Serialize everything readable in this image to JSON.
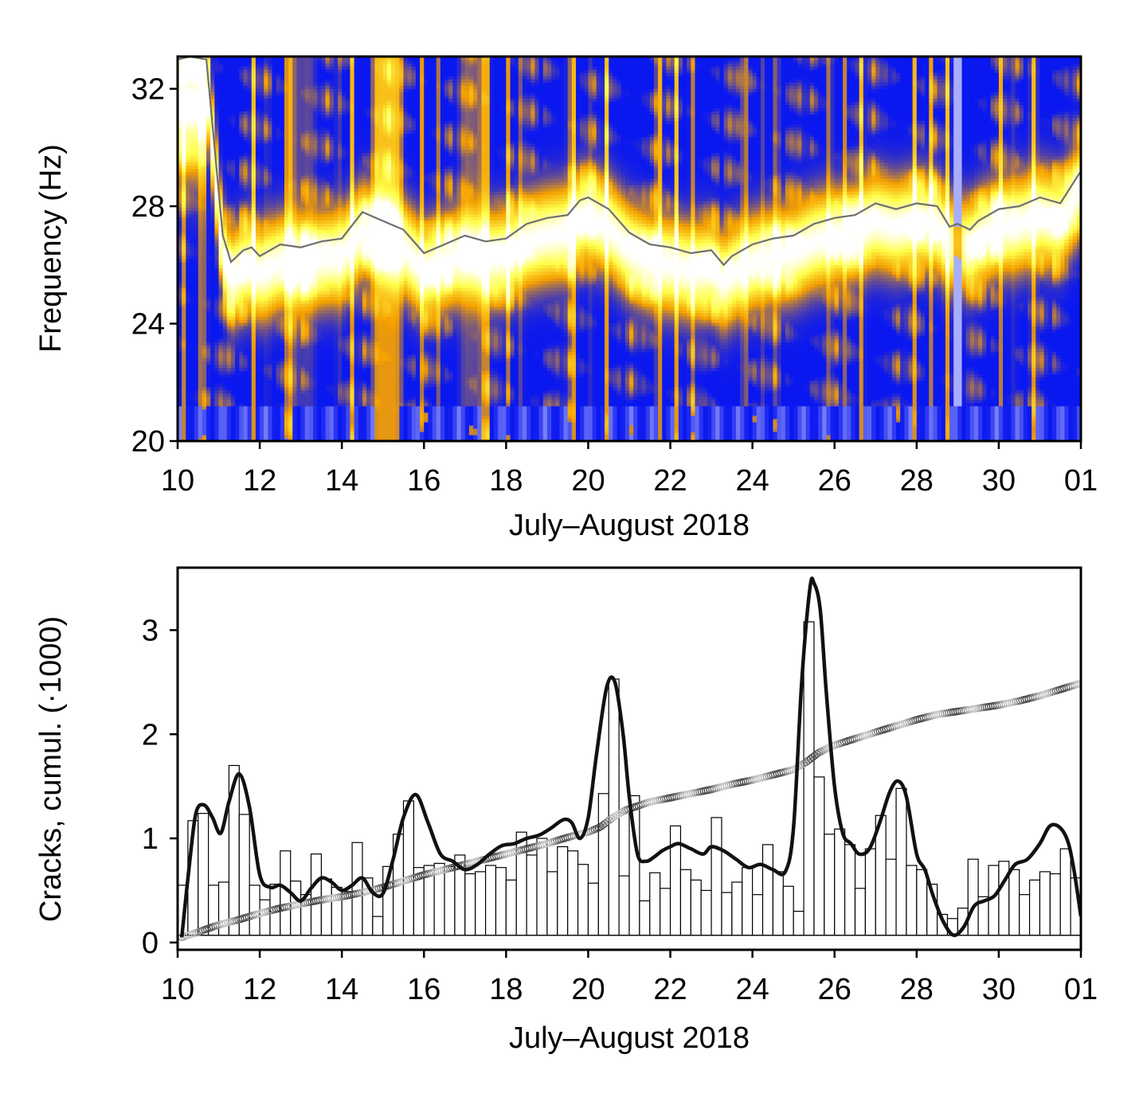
{
  "chart_data": [
    {
      "type": "heatmap",
      "xlabel": "July–August 2018",
      "ylabel": "Frequency (Hz)",
      "x_tick_labels": [
        "10",
        "12",
        "14",
        "16",
        "18",
        "20",
        "22",
        "24",
        "26",
        "28",
        "30",
        "01"
      ],
      "x_tick_days": [
        10,
        12,
        14,
        16,
        18,
        20,
        22,
        24,
        26,
        28,
        30,
        32
      ],
      "xlim": [
        10,
        32
      ],
      "ylim": [
        20,
        33.1
      ],
      "y_ticks": [
        20,
        24,
        28,
        32
      ],
      "colormap": [
        "#ffffff",
        "#0a18f0",
        "#f5a000",
        "#ffff4a",
        "#ffffff"
      ],
      "features": {
        "band_halfwidth_hz": 1.4,
        "gap_at_day": 29.0,
        "upper_band_until_day": 10.7
      },
      "line": {
        "name": "",
        "color": "#6f6f6f",
        "x": [
          10,
          10.3,
          10.7,
          10.9,
          11.1,
          11.3,
          11.6,
          11.8,
          12.0,
          12.5,
          13.0,
          13.5,
          14.0,
          14.5,
          15.0,
          15.5,
          16.0,
          16.5,
          17.0,
          17.5,
          18.0,
          18.5,
          19.0,
          19.5,
          19.8,
          20.0,
          20.5,
          21.0,
          21.5,
          22.0,
          22.5,
          23.0,
          23.3,
          23.5,
          24.0,
          24.5,
          25.0,
          25.5,
          26.0,
          26.5,
          27.0,
          27.5,
          28.0,
          28.5,
          28.8,
          29.0,
          29.3,
          29.5,
          30.0,
          30.5,
          31.0,
          31.5,
          32.0
        ],
        "y": [
          33.0,
          33.1,
          33.0,
          30.0,
          27.0,
          26.1,
          26.5,
          26.6,
          26.3,
          26.7,
          26.6,
          26.8,
          26.9,
          27.8,
          27.5,
          27.2,
          26.4,
          26.7,
          27.0,
          26.8,
          26.9,
          27.4,
          27.6,
          27.7,
          28.2,
          28.3,
          27.9,
          27.1,
          26.7,
          26.6,
          26.4,
          26.5,
          26.0,
          26.3,
          26.7,
          26.9,
          27.0,
          27.4,
          27.6,
          27.7,
          28.1,
          27.9,
          28.1,
          28.0,
          27.3,
          27.4,
          27.2,
          27.5,
          27.9,
          28.0,
          28.3,
          28.1,
          29.2
        ]
      }
    },
    {
      "type": "bar",
      "xlabel": "July–August 2018",
      "ylabel": "Cracks, cumul. (·1000)",
      "x_tick_labels": [
        "10",
        "12",
        "14",
        "16",
        "18",
        "20",
        "22",
        "24",
        "26",
        "28",
        "30",
        "01"
      ],
      "x_tick_days": [
        10,
        12,
        14,
        16,
        18,
        20,
        22,
        24,
        26,
        28,
        30,
        32
      ],
      "xlim": [
        10,
        32
      ],
      "ylim": [
        -0.07,
        3.6
      ],
      "y_ticks": [
        0,
        1,
        2,
        3
      ],
      "baseline": 0.07,
      "bar_width_days": 0.25,
      "bars_x": [
        10.125,
        10.375,
        10.625,
        10.875,
        11.125,
        11.375,
        11.625,
        11.875,
        12.125,
        12.375,
        12.625,
        12.875,
        13.125,
        13.375,
        13.625,
        13.875,
        14.125,
        14.375,
        14.625,
        14.875,
        15.125,
        15.375,
        15.625,
        15.875,
        16.125,
        16.375,
        16.625,
        16.875,
        17.125,
        17.375,
        17.625,
        17.875,
        18.125,
        18.375,
        18.625,
        18.875,
        19.125,
        19.375,
        19.625,
        19.875,
        20.125,
        20.375,
        20.625,
        20.875,
        21.125,
        21.375,
        21.625,
        21.875,
        22.125,
        22.375,
        22.625,
        22.875,
        23.125,
        23.375,
        23.625,
        23.875,
        24.125,
        24.375,
        24.625,
        24.875,
        25.125,
        25.375,
        25.625,
        25.875,
        26.125,
        26.375,
        26.625,
        26.875,
        27.125,
        27.375,
        27.625,
        27.875,
        28.125,
        28.375,
        28.625,
        28.875,
        29.125,
        29.375,
        29.625,
        29.875,
        30.125,
        30.375,
        30.625,
        30.875,
        31.125,
        31.375,
        31.625,
        31.875
      ],
      "bars_values": [
        0.55,
        1.17,
        1.24,
        0.55,
        0.58,
        1.7,
        1.23,
        0.55,
        0.41,
        0.56,
        0.88,
        0.59,
        0.46,
        0.85,
        0.61,
        0.53,
        0.49,
        0.96,
        0.62,
        0.25,
        0.73,
        1.04,
        1.36,
        0.72,
        0.74,
        0.76,
        0.73,
        0.84,
        0.66,
        0.68,
        0.74,
        0.72,
        0.6,
        1.06,
        0.84,
        1.0,
        0.68,
        0.92,
        0.88,
        0.75,
        0.57,
        1.43,
        2.53,
        0.64,
        1.41,
        0.4,
        0.67,
        0.52,
        1.12,
        0.7,
        0.6,
        0.5,
        1.2,
        0.48,
        0.58,
        0.72,
        0.46,
        0.94,
        0.68,
        0.54,
        0.3,
        3.08,
        1.59,
        1.04,
        1.09,
        0.94,
        0.52,
        0.9,
        1.22,
        0.8,
        1.48,
        0.74,
        0.7,
        0.56,
        0.27,
        0.23,
        0.33,
        0.8,
        0.44,
        0.74,
        0.78,
        0.7,
        0.46,
        0.6,
        0.68,
        0.66,
        0.9,
        0.62
      ],
      "curve": {
        "name": "",
        "x": [
          10.1,
          10.3,
          10.45,
          10.65,
          10.85,
          11.05,
          11.25,
          11.5,
          11.75,
          12.0,
          12.25,
          12.5,
          12.75,
          13.0,
          13.25,
          13.5,
          13.75,
          14.0,
          14.25,
          14.5,
          14.75,
          15.0,
          15.25,
          15.5,
          15.8,
          16.1,
          16.4,
          16.7,
          17.0,
          17.3,
          17.6,
          17.9,
          18.2,
          18.5,
          18.8,
          19.1,
          19.4,
          19.6,
          19.8,
          20.0,
          20.2,
          20.45,
          20.65,
          20.85,
          21.0,
          21.2,
          21.4,
          21.6,
          21.8,
          22.0,
          22.2,
          22.5,
          22.8,
          23.0,
          23.3,
          23.6,
          23.9,
          24.2,
          24.5,
          24.8,
          25.0,
          25.2,
          25.4,
          25.5,
          25.65,
          25.8,
          26.0,
          26.2,
          26.4,
          26.6,
          26.85,
          27.1,
          27.35,
          27.55,
          27.75,
          28.0,
          28.2,
          28.4,
          28.65,
          28.9,
          29.15,
          29.4,
          29.65,
          29.9,
          30.15,
          30.4,
          30.7,
          31.0,
          31.25,
          31.5,
          31.7,
          31.85,
          32.0
        ],
        "y": [
          0.05,
          0.8,
          1.25,
          1.32,
          1.2,
          1.05,
          1.35,
          1.62,
          1.3,
          0.65,
          0.53,
          0.55,
          0.48,
          0.4,
          0.52,
          0.62,
          0.58,
          0.5,
          0.55,
          0.62,
          0.48,
          0.47,
          0.8,
          1.2,
          1.42,
          1.15,
          0.85,
          0.78,
          0.7,
          0.75,
          0.85,
          0.93,
          0.95,
          1.0,
          1.03,
          1.1,
          1.18,
          1.15,
          1.0,
          1.2,
          1.8,
          2.45,
          2.5,
          2.0,
          1.4,
          0.85,
          0.78,
          0.82,
          0.88,
          0.92,
          0.95,
          0.9,
          0.85,
          0.92,
          0.88,
          0.8,
          0.72,
          0.75,
          0.7,
          0.68,
          1.1,
          2.5,
          3.4,
          3.45,
          3.2,
          2.4,
          1.5,
          1.05,
          0.95,
          0.85,
          0.9,
          1.15,
          1.45,
          1.55,
          1.4,
          0.85,
          0.7,
          0.45,
          0.2,
          0.07,
          0.15,
          0.35,
          0.4,
          0.45,
          0.6,
          0.75,
          0.8,
          0.95,
          1.12,
          1.1,
          0.95,
          0.65,
          0.25
        ]
      },
      "cumulative": {
        "name": "",
        "x": [
          10.1,
          10.5,
          11.0,
          11.5,
          12.0,
          12.5,
          13.0,
          13.5,
          14.0,
          14.5,
          15.0,
          15.5,
          16.0,
          16.5,
          17.0,
          17.5,
          18.0,
          18.5,
          19.0,
          19.5,
          20.0,
          20.3,
          20.6,
          20.9,
          21.2,
          21.5,
          22.0,
          22.5,
          23.0,
          23.5,
          24.0,
          24.5,
          25.0,
          25.3,
          25.6,
          25.9,
          26.2,
          26.6,
          27.0,
          27.5,
          28.0,
          28.5,
          29.0,
          29.5,
          30.0,
          30.5,
          31.0,
          31.5,
          32.0
        ],
        "y": [
          0.05,
          0.1,
          0.17,
          0.22,
          0.28,
          0.33,
          0.37,
          0.41,
          0.44,
          0.48,
          0.53,
          0.59,
          0.65,
          0.7,
          0.75,
          0.8,
          0.85,
          0.9,
          0.95,
          1.01,
          1.06,
          1.11,
          1.2,
          1.27,
          1.31,
          1.35,
          1.39,
          1.43,
          1.47,
          1.52,
          1.56,
          1.61,
          1.66,
          1.73,
          1.82,
          1.88,
          1.92,
          1.97,
          2.02,
          2.08,
          2.14,
          2.19,
          2.22,
          2.25,
          2.28,
          2.32,
          2.37,
          2.43,
          2.49
        ]
      }
    }
  ]
}
